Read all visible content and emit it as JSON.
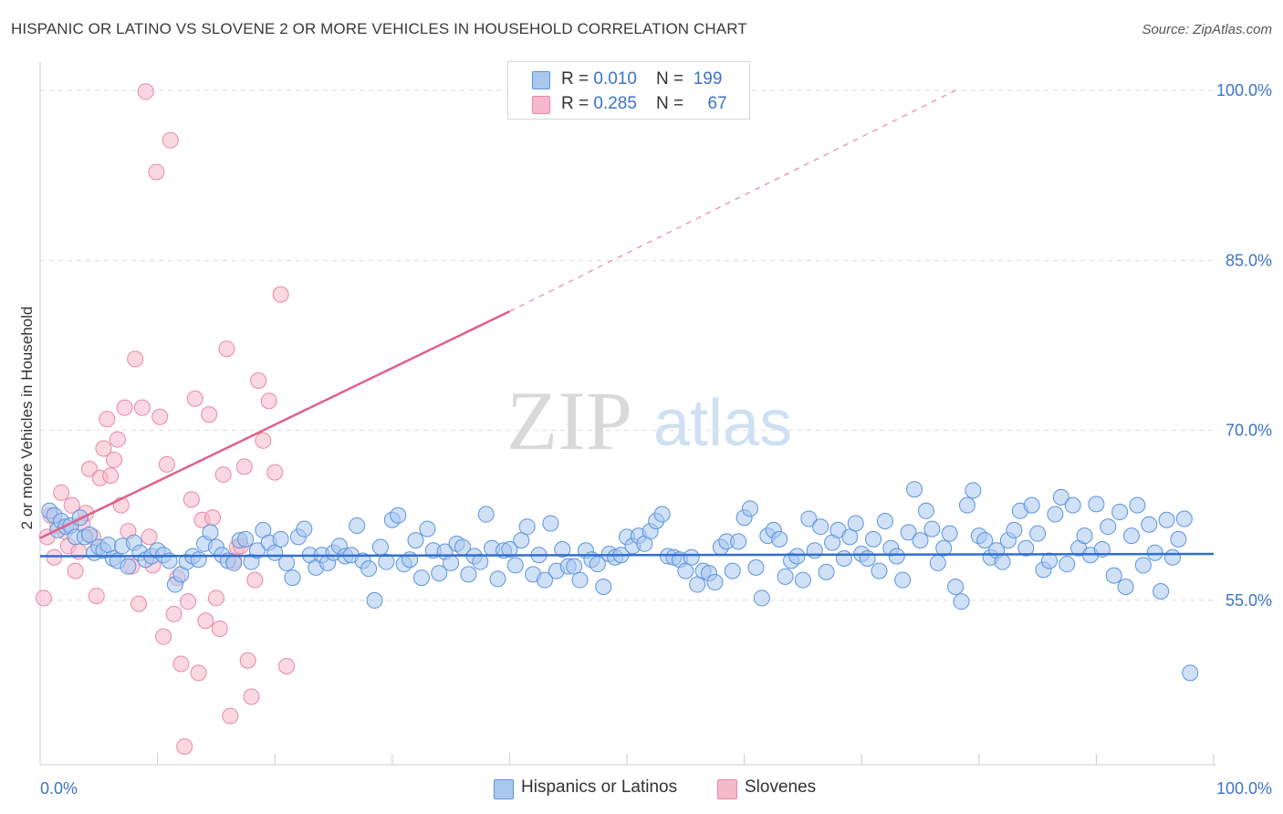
{
  "title": "HISPANIC OR LATINO VS SLOVENE 2 OR MORE VEHICLES IN HOUSEHOLD CORRELATION CHART",
  "source": "Source: ZipAtlas.com",
  "watermark": {
    "zip": "ZIP",
    "atlas": "atlas"
  },
  "legend": {
    "rows": [
      {
        "r_label": "R = ",
        "r_value": "0.010",
        "n_label": "N = ",
        "n_value": "199"
      },
      {
        "r_label": "R = ",
        "r_value": "0.285",
        "n_label": "N = ",
        "n_value": "67"
      }
    ]
  },
  "bottom_legend": {
    "series1": "Hispanics or Latinos",
    "series2": "Slovenes"
  },
  "colors": {
    "blue_fill": "#a9c8f0",
    "blue_stroke": "#5b93dc",
    "blue_line": "#2f6fce",
    "pink_fill": "#f6b8cb",
    "pink_stroke": "#e888a6",
    "pink_line": "#e0608a",
    "tick_text": "#3b74c6",
    "grid": "#dddddd"
  },
  "chart_data": {
    "type": "scatter",
    "title": "HISPANIC OR LATINO VS SLOVENE 2 OR MORE VEHICLES IN HOUSEHOLD CORRELATION CHART",
    "xlabel": "",
    "ylabel": "2 or more Vehicles in Household",
    "xlim": [
      0,
      100
    ],
    "ylim": [
      40.5,
      102.5
    ],
    "x_tick_labels": [
      "0.0%",
      "100.0%"
    ],
    "y_ticks": [
      {
        "value": 55,
        "label": "55.0%"
      },
      {
        "value": 70,
        "label": "70.0%"
      },
      {
        "value": 85,
        "label": "85.0%"
      },
      {
        "value": 100,
        "label": "100.0%"
      }
    ],
    "grid": true,
    "legend_position": "top-center",
    "series": [
      {
        "name": "Hispanics or Latinos",
        "color": "#a9c8f0",
        "trend": {
          "x": [
            0,
            100
          ],
          "y": [
            58.9,
            59.1
          ]
        },
        "points": [
          [
            0.8,
            62.9
          ],
          [
            1.2,
            62.5
          ],
          [
            1.5,
            61.2
          ],
          [
            1.8,
            62.0
          ],
          [
            2.2,
            61.5
          ],
          [
            2.6,
            61.6
          ],
          [
            3.0,
            60.6
          ],
          [
            3.4,
            62.3
          ],
          [
            3.8,
            60.6
          ],
          [
            4.2,
            60.8
          ],
          [
            4.6,
            59.2
          ],
          [
            5.0,
            59.7
          ],
          [
            5.4,
            59.4
          ],
          [
            5.8,
            59.9
          ],
          [
            6.2,
            58.7
          ],
          [
            6.6,
            58.5
          ],
          [
            7.0,
            59.8
          ],
          [
            7.5,
            58.0
          ],
          [
            8.0,
            60.1
          ],
          [
            8.5,
            59.2
          ],
          [
            9.0,
            58.6
          ],
          [
            9.5,
            58.9
          ],
          [
            10.0,
            59.4
          ],
          [
            10.5,
            59.0
          ],
          [
            11.0,
            58.5
          ],
          [
            11.5,
            56.4
          ],
          [
            12.0,
            57.3
          ],
          [
            12.5,
            58.4
          ],
          [
            13.0,
            58.9
          ],
          [
            13.5,
            58.6
          ],
          [
            14.0,
            60.0
          ],
          [
            14.5,
            61.0
          ],
          [
            15.0,
            59.7
          ],
          [
            15.5,
            59.0
          ],
          [
            16.0,
            58.5
          ],
          [
            16.5,
            58.3
          ],
          [
            17.0,
            60.3
          ],
          [
            17.5,
            60.4
          ],
          [
            18.0,
            58.4
          ],
          [
            18.5,
            59.4
          ],
          [
            19.0,
            61.2
          ],
          [
            19.5,
            60.1
          ],
          [
            20.0,
            59.2
          ],
          [
            20.5,
            60.4
          ],
          [
            21.0,
            58.3
          ],
          [
            21.5,
            57.0
          ],
          [
            22.0,
            60.6
          ],
          [
            22.5,
            61.3
          ],
          [
            23.0,
            59.0
          ],
          [
            23.5,
            57.9
          ],
          [
            24.0,
            59.0
          ],
          [
            24.5,
            58.3
          ],
          [
            25.0,
            59.2
          ],
          [
            25.5,
            59.8
          ],
          [
            26.0,
            58.9
          ],
          [
            26.5,
            59.0
          ],
          [
            27.0,
            61.6
          ],
          [
            27.5,
            58.5
          ],
          [
            28.0,
            57.8
          ],
          [
            28.5,
            55.0
          ],
          [
            29.0,
            59.7
          ],
          [
            29.5,
            58.4
          ],
          [
            30.0,
            62.1
          ],
          [
            30.5,
            62.5
          ],
          [
            31.0,
            58.2
          ],
          [
            31.5,
            58.6
          ],
          [
            32.0,
            60.3
          ],
          [
            32.5,
            57.0
          ],
          [
            33.0,
            61.3
          ],
          [
            33.5,
            59.4
          ],
          [
            34.0,
            57.4
          ],
          [
            34.5,
            59.3
          ],
          [
            35.0,
            58.3
          ],
          [
            35.5,
            60.0
          ],
          [
            36.0,
            59.7
          ],
          [
            36.5,
            57.3
          ],
          [
            37.0,
            58.9
          ],
          [
            37.5,
            58.4
          ],
          [
            38.0,
            62.6
          ],
          [
            38.5,
            59.6
          ],
          [
            39.0,
            56.9
          ],
          [
            39.5,
            59.4
          ],
          [
            40.0,
            59.5
          ],
          [
            40.5,
            58.1
          ],
          [
            41.0,
            60.3
          ],
          [
            41.5,
            61.5
          ],
          [
            42.0,
            57.3
          ],
          [
            42.5,
            59.0
          ],
          [
            43.0,
            56.8
          ],
          [
            43.5,
            61.8
          ],
          [
            44.0,
            57.6
          ],
          [
            44.5,
            59.5
          ],
          [
            45.0,
            58.0
          ],
          [
            45.5,
            58.0
          ],
          [
            46.0,
            56.8
          ],
          [
            46.5,
            59.4
          ],
          [
            47.0,
            58.6
          ],
          [
            47.5,
            58.2
          ],
          [
            48.0,
            56.2
          ],
          [
            48.5,
            59.1
          ],
          [
            49.0,
            58.8
          ],
          [
            49.5,
            59.0
          ],
          [
            50.0,
            60.6
          ],
          [
            50.5,
            59.8
          ],
          [
            51.0,
            60.7
          ],
          [
            51.5,
            60.0
          ],
          [
            52.0,
            61.1
          ],
          [
            52.5,
            62.0
          ],
          [
            53.0,
            62.6
          ],
          [
            53.5,
            58.9
          ],
          [
            54.0,
            58.8
          ],
          [
            54.5,
            58.6
          ],
          [
            55.0,
            57.6
          ],
          [
            55.5,
            58.8
          ],
          [
            56.0,
            56.4
          ],
          [
            56.5,
            57.6
          ],
          [
            57.0,
            57.4
          ],
          [
            57.5,
            56.6
          ],
          [
            58.0,
            59.7
          ],
          [
            58.5,
            60.2
          ],
          [
            59.0,
            57.6
          ],
          [
            59.5,
            60.2
          ],
          [
            60.0,
            62.3
          ],
          [
            60.5,
            63.1
          ],
          [
            61.0,
            57.9
          ],
          [
            61.5,
            55.2
          ],
          [
            62.0,
            60.7
          ],
          [
            62.5,
            61.2
          ],
          [
            63.0,
            60.4
          ],
          [
            63.5,
            57.1
          ],
          [
            64.0,
            58.5
          ],
          [
            64.5,
            58.9
          ],
          [
            65.0,
            56.8
          ],
          [
            65.5,
            62.2
          ],
          [
            66.0,
            59.4
          ],
          [
            66.5,
            61.5
          ],
          [
            67.0,
            57.5
          ],
          [
            67.5,
            60.1
          ],
          [
            68.0,
            61.2
          ],
          [
            68.5,
            58.7
          ],
          [
            69.0,
            60.6
          ],
          [
            69.5,
            61.8
          ],
          [
            70.0,
            59.1
          ],
          [
            70.5,
            58.7
          ],
          [
            71.0,
            60.4
          ],
          [
            71.5,
            57.6
          ],
          [
            72.0,
            62.0
          ],
          [
            72.5,
            59.6
          ],
          [
            73.0,
            58.9
          ],
          [
            73.5,
            56.8
          ],
          [
            74.0,
            61.0
          ],
          [
            74.5,
            64.8
          ],
          [
            75.0,
            60.3
          ],
          [
            75.5,
            62.9
          ],
          [
            76.0,
            61.3
          ],
          [
            76.5,
            58.3
          ],
          [
            77.0,
            59.6
          ],
          [
            77.5,
            60.9
          ],
          [
            78.0,
            56.2
          ],
          [
            78.5,
            54.9
          ],
          [
            79.0,
            63.4
          ],
          [
            79.5,
            64.7
          ],
          [
            80.0,
            60.7
          ],
          [
            80.5,
            60.3
          ],
          [
            81.0,
            58.8
          ],
          [
            81.5,
            59.4
          ],
          [
            82.0,
            58.4
          ],
          [
            82.5,
            60.3
          ],
          [
            83.0,
            61.2
          ],
          [
            83.5,
            62.9
          ],
          [
            84.0,
            59.6
          ],
          [
            84.5,
            63.4
          ],
          [
            85.0,
            60.9
          ],
          [
            85.5,
            57.7
          ],
          [
            86.0,
            58.5
          ],
          [
            86.5,
            62.6
          ],
          [
            87.0,
            64.1
          ],
          [
            87.5,
            58.2
          ],
          [
            88.0,
            63.4
          ],
          [
            88.5,
            59.6
          ],
          [
            89.0,
            60.7
          ],
          [
            89.5,
            59.0
          ],
          [
            90.0,
            63.5
          ],
          [
            90.5,
            59.5
          ],
          [
            91.0,
            61.5
          ],
          [
            91.5,
            57.2
          ],
          [
            92.0,
            62.8
          ],
          [
            92.5,
            56.2
          ],
          [
            93.0,
            60.7
          ],
          [
            93.5,
            63.4
          ],
          [
            94.0,
            58.1
          ],
          [
            94.5,
            61.7
          ],
          [
            95.0,
            59.2
          ],
          [
            95.5,
            55.8
          ],
          [
            96.0,
            62.1
          ],
          [
            96.5,
            58.8
          ],
          [
            97.0,
            60.4
          ],
          [
            97.5,
            62.2
          ],
          [
            98.0,
            48.6
          ]
        ]
      },
      {
        "name": "Slovenes",
        "color": "#f6b8cb",
        "trend": {
          "x": [
            0,
            40
          ],
          "y": [
            60.5,
            80.5
          ]
        },
        "trend_extension": {
          "x": [
            40,
            78
          ],
          "y": [
            80.5,
            100.0
          ]
        },
        "points": [
          [
            0.3,
            55.2
          ],
          [
            0.6,
            60.6
          ],
          [
            0.9,
            62.5
          ],
          [
            1.2,
            58.8
          ],
          [
            1.5,
            61.6
          ],
          [
            1.8,
            64.5
          ],
          [
            2.1,
            61.1
          ],
          [
            2.4,
            59.8
          ],
          [
            2.7,
            63.4
          ],
          [
            3.0,
            57.6
          ],
          [
            3.3,
            59.3
          ],
          [
            3.6,
            61.8
          ],
          [
            3.9,
            62.7
          ],
          [
            4.2,
            66.6
          ],
          [
            4.5,
            60.6
          ],
          [
            4.8,
            55.4
          ],
          [
            5.1,
            65.8
          ],
          [
            5.4,
            68.4
          ],
          [
            5.7,
            71.0
          ],
          [
            6.0,
            66.0
          ],
          [
            6.3,
            67.4
          ],
          [
            6.6,
            69.2
          ],
          [
            6.9,
            63.4
          ],
          [
            7.2,
            72.0
          ],
          [
            7.5,
            61.1
          ],
          [
            7.8,
            58.0
          ],
          [
            8.1,
            76.3
          ],
          [
            8.4,
            54.7
          ],
          [
            8.7,
            72.0
          ],
          [
            9.0,
            99.9
          ],
          [
            9.3,
            60.6
          ],
          [
            9.6,
            58.1
          ],
          [
            9.9,
            92.8
          ],
          [
            10.2,
            71.2
          ],
          [
            10.5,
            51.8
          ],
          [
            10.8,
            67.0
          ],
          [
            11.1,
            95.6
          ],
          [
            11.4,
            53.8
          ],
          [
            11.7,
            57.0
          ],
          [
            12.0,
            49.4
          ],
          [
            12.3,
            42.1
          ],
          [
            12.6,
            54.9
          ],
          [
            12.9,
            63.9
          ],
          [
            13.2,
            72.8
          ],
          [
            13.5,
            48.6
          ],
          [
            13.8,
            62.1
          ],
          [
            14.1,
            53.2
          ],
          [
            14.4,
            71.4
          ],
          [
            14.7,
            62.3
          ],
          [
            15.0,
            55.2
          ],
          [
            15.3,
            52.5
          ],
          [
            15.6,
            66.1
          ],
          [
            15.9,
            77.2
          ],
          [
            16.2,
            44.8
          ],
          [
            16.5,
            58.5
          ],
          [
            16.8,
            59.7
          ],
          [
            17.1,
            59.8
          ],
          [
            17.4,
            66.8
          ],
          [
            17.7,
            49.7
          ],
          [
            18.0,
            46.5
          ],
          [
            18.3,
            56.8
          ],
          [
            18.6,
            74.4
          ],
          [
            19.0,
            69.1
          ],
          [
            19.5,
            72.6
          ],
          [
            20.0,
            66.3
          ],
          [
            20.5,
            82.0
          ],
          [
            21.0,
            49.2
          ]
        ]
      }
    ]
  }
}
